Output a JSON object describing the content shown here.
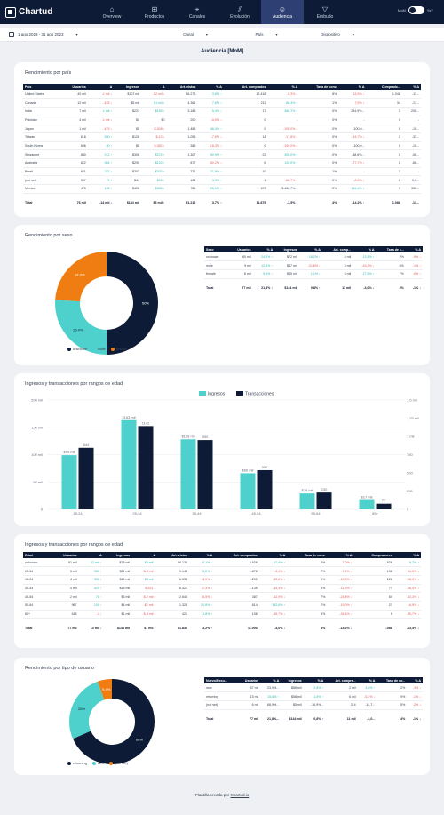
{
  "app": {
    "logo": "Chartud"
  },
  "nav": [
    {
      "label": "Overview",
      "icon": "⌂",
      "active": false
    },
    {
      "label": "Productos",
      "icon": "⊞",
      "active": false
    },
    {
      "label": "Canales",
      "icon": "⌖",
      "active": false
    },
    {
      "label": "Evolución",
      "icon": "⫽",
      "active": false
    },
    {
      "label": "Audiencia",
      "icon": "☺",
      "active": true
    },
    {
      "label": "Embudo",
      "icon": "▽",
      "active": false
    }
  ],
  "toggle": {
    "left": "MoM",
    "right": "YoY"
  },
  "filters": {
    "date": "1 ago 2023 - 31 ago 2023",
    "canal": "Canal",
    "pais": "País",
    "dispositivo": "Dispositivo"
  },
  "page_title": "Audiencia [MoM]",
  "colors": {
    "navy": "#0d1b36",
    "teal": "#4ed1cc",
    "orange": "#f07d12"
  },
  "country": {
    "title": "Rendimiento por país",
    "headers": [
      "País",
      "Usuarios",
      "Δ",
      "Ingresos",
      "Δ",
      "Art. vistos",
      "% Δ",
      "Art. comprados",
      "% Δ",
      "Tasa de conv.",
      "% Δ",
      "Comprado...",
      "% Δ"
    ],
    "rows": [
      [
        "United States",
        "40 mil",
        "-1 mil ↓",
        "$107 mil",
        "-$2 mil ↓",
        "36.273",
        "3,8% ↑",
        "12.418",
        "-5,3% ↓",
        "8%",
        "13,5% ↓",
        "1.048",
        "-11..."
      ],
      [
        "Canada",
        "12 mil",
        "-425 ↓",
        "$5 mil",
        "$1 mil ↑",
        "4.366",
        "7,6% ↑",
        "211",
        "88,4% ↑",
        "1%",
        "7,9% ↓",
        "34",
        "-17..."
      ],
      [
        "India",
        "7 mil",
        "1 mil ↑",
        "$221",
        "$169 ↑",
        "3.186",
        "5,4% ↑",
        "17",
        "466,7% ↑",
        "0%",
        "244,9%...",
        "3",
        "200..."
      ],
      [
        "Pakistan",
        "4 mil",
        "-1 mil ↓",
        "$0",
        "$0",
        "250",
        "-5,5% ↓",
        "0",
        "-",
        "0%",
        "-",
        "0",
        "-"
      ],
      [
        "Japan",
        "1 mil",
        "-479 ↓",
        "$0",
        "$-308 ↓",
        "1.483",
        "46,4% ↑",
        "0",
        "-100,0% ↓",
        "0%",
        "-100,0...",
        "0",
        "-10..."
      ],
      [
        "Taiwan",
        "816",
        "390 ↑",
        "$126",
        "$-13 ↓",
        "1.055",
        "-7,8% ↓",
        "14",
        "-17,6% ↓",
        "0%",
        "-44,7% ↓",
        "2",
        "-33..."
      ],
      [
        "South Korea",
        "696",
        "90 ↑",
        "$0",
        "$-382 ↓",
        "385",
        "-18,3% ↓",
        "0",
        "-100,0% ↓",
        "0%",
        "-100,0...",
        "0",
        "-10..."
      ],
      [
        "Singapore",
        "840",
        "312 ↑",
        "$306",
        "$274 ↑",
        "1.307",
        "50,9% ↑",
        "22",
        "300,0% ↑",
        "0%",
        "-88,6%...",
        "1",
        "-50..."
      ],
      [
        "Australia",
        "822",
        "304 ↑",
        "$290",
        "$120 ↑",
        "877",
        "-50,2% ↓",
        "6",
        "120,0% ↑",
        "0%",
        "-77,7% ↓",
        "1",
        "-66..."
      ],
      [
        "Brazil",
        "661",
        "322 ↑",
        "$303",
        "$303 ↑",
        "732",
        "21,8% ↑",
        "10",
        "-",
        "1%",
        "-",
        "2",
        "-"
      ],
      [
        "(not set)",
        "557",
        "71 ↑",
        "$44",
        "$26 ↑",
        "406",
        "3,3% ↑",
        "1",
        "-66,7% ↓",
        "0%",
        "-8,5% ↓",
        "1",
        "0,0..."
      ],
      [
        "Mexico",
        "470",
        "163 ↑",
        "$426",
        "$366 ↑",
        "786",
        "26,5% ↑",
        "107",
        "3.466,7%...",
        "2%",
        "164,6% ↑",
        "9",
        "350..."
      ]
    ],
    "total": [
      "Total",
      "76 mil",
      "-14 mil ↓",
      "$144 mil",
      "$3 mil ↑",
      "81.216",
      "3,7% ↑",
      "11.875",
      "-3,5% ↓",
      "4%",
      "-14,2% ↓",
      "1.088",
      "-13..."
    ]
  },
  "sex": {
    "title": "Rendimiento por sexo",
    "headers": [
      "Sexo",
      "Usuarios",
      "% Δ",
      "Ingresos",
      "% Δ",
      "Art. comp...",
      "% Δ",
      "Tasa de c...",
      "% Δ"
    ],
    "rows": [
      [
        "unknown",
        "60 mil",
        "24,6% ↑",
        "$72 mil",
        "18,2% ↑",
        "5 mil",
        "13,5% ↑",
        "2%",
        "-9% ↓"
      ],
      [
        "male",
        "9 mil",
        "12,8% ↑",
        "$37 mil",
        "-21,8% ↓",
        "3 mil",
        "-43,2% ↓",
        "6%",
        "-1% ↓"
      ],
      [
        "female",
        "6 mil",
        "9,4% ↑",
        "$35 mil",
        "1,1% ↑",
        "3 mil",
        "27,5% ↑",
        "7%",
        "-0% ↓"
      ]
    ],
    "total": [
      "Total",
      "77 mil",
      "21,8% ↑",
      "$144 mil",
      "0,8% ↑",
      "11 mil",
      "-4,0% ↓",
      "4%",
      "-1% ↓"
    ],
    "legend": [
      "unknown",
      "male",
      "female"
    ]
  },
  "sex_pie": {
    "type": "pie",
    "slices": [
      {
        "name": "unknown",
        "value": 50,
        "label": "50%",
        "color": "#0d1b36"
      },
      {
        "name": "male",
        "value": 26,
        "label": "26.0%",
        "color": "#4ed1cc"
      },
      {
        "name": "female",
        "value": 24,
        "label": "24.0%",
        "color": "#f07d12"
      }
    ]
  },
  "chart_data": {
    "type": "bar",
    "title": "Ingresos y transacciones por rangos de edad",
    "categories": [
      "18-24",
      "25-34",
      "35-44",
      "45-54",
      "55-64",
      "65+"
    ],
    "series": [
      {
        "name": "Ingresos",
        "axis": "left",
        "values": [
          99000,
          163000,
          128000,
          66000,
          29000,
          17000
        ],
        "labels": [
          "$99 mil",
          "$163 mil",
          "$128 mil",
          "$66 mil",
          "$29 mil",
          "$17 mil"
        ]
      },
      {
        "name": "Transacciones",
        "axis": "right",
        "values": [
          844,
          1142,
          950,
          537,
          230,
          77
        ],
        "labels": [
          "844",
          "1142",
          "950",
          "537",
          "230",
          "77"
        ]
      }
    ],
    "ylim_left": [
      0,
      200000
    ],
    "left_ticks": [
      "0",
      "50 mil",
      "100 mil",
      "150 mil",
      "200 mil"
    ],
    "ylim_right": [
      0,
      1500
    ],
    "right_ticks": [
      "0",
      "250",
      "500",
      "750",
      "1 mil",
      "1,25 mil",
      "1,5 mil"
    ],
    "legend_position": "top-center",
    "grid": true
  },
  "age": {
    "title": "Ingresos y transacciones por rangos de edad",
    "headers": [
      "Edad",
      "Usuarios",
      "Δ",
      "Ingresos",
      "Δ",
      "Art. vistos",
      "% Δ",
      "Art. comprados",
      "% Δ",
      "Tasa de conv.",
      "% Δ",
      "Compradores",
      "% Δ"
    ],
    "rows": [
      [
        "unknown",
        "61 mil",
        "12 mil ↑",
        "$75 mil",
        "$8 mil ↑",
        "56.136",
        "5,1% ↑",
        "4.928",
        "12,9% ↑",
        "3%",
        "-7,0% ↓",
        "826",
        "9,7% ↑"
      ],
      [
        "25-34",
        "5 mil",
        "389 ↑",
        "$21 mil",
        "$-4 mil ↓",
        "9.143",
        "5,6% ↑",
        "1.878",
        "-3,4% ↓",
        "7%",
        "-7,1% ↓",
        "198",
        "11,5% ↓"
      ],
      [
        "18-24",
        "4 mil",
        "301 ↑",
        "$19 mil",
        "$8 mil ↑",
        "6.035",
        "-3,9% ↓",
        "1.295",
        "-12,8% ↓",
        "6%",
        "-10,9% ↓",
        "126",
        "-16,5% ↓"
      ],
      [
        "35-44",
        "4 mil",
        "425 ↑",
        "$15 mil",
        "$-621 ↓",
        "6.422",
        "-2,3% ↓",
        "1.135",
        "-44,3% ↓",
        "6%",
        "-11,6% ↓",
        "77",
        "-16,4% ↓"
      ],
      [
        "45-54",
        "2 mil",
        "78 ↑",
        "$3 mil",
        "$-2 mil ↓",
        "2.646",
        "-6,5% ↓",
        "387",
        "-42,9% ↓",
        "7%",
        "-24,8% ↓",
        "54",
        "-33,3% ↓"
      ],
      [
        "55-64",
        "967",
        "100 ↑",
        "$4 mil",
        "-$1 mil ↓",
        "1.323",
        "20,8% ↑",
        "614",
        "342,6% ↑",
        "7%",
        "-19,0% ↓",
        "27",
        "-6,9% ↓"
      ],
      [
        "65+",
        "618",
        "-4 ↓",
        "$1 mil",
        "$-8 mil ↓",
        "421",
        "1,8% ↑",
        "108",
        "-35,7% ↓",
        "5%",
        "-34,4% ↓",
        "9",
        "-35,7% ↓"
      ]
    ],
    "total": [
      "Total",
      "77 mil",
      "14 mil ↑",
      "$144 mil",
      "$1 mil ↑",
      "81.830",
      "3,2% ↑",
      "11.000",
      "-4,0% ↓",
      "4%",
      "-14,2% ↓",
      "1.088",
      "-13,4% ↓"
    ]
  },
  "usertype": {
    "title": "Rendimiento por tipo de usuario",
    "headers": [
      "Nuevo/Recu...",
      "Usuarios",
      "% Δ",
      "Ingresos",
      "% Δ",
      "Art. compra...",
      "% Δ",
      "Tasa de co...",
      "% Δ"
    ],
    "rows": [
      [
        "new",
        "57 mil",
        "23,9%...",
        "$86 mil",
        "2,8% ↑",
        "2 mil",
        "4,6% ↑",
        "2%",
        "-3% ↓"
      ],
      [
        "returning",
        "15 mil",
        "15,6% ↑",
        "$58 mil",
        "1,8% ↑",
        "6 mil",
        "-5,2% ↓",
        "9%",
        "-1% ↓"
      ],
      [
        "(not set)",
        "6 mil",
        "68,9%...",
        "$5 mil",
        "-16,9%...",
        "314",
        "-14,7...",
        "5%",
        "-2% ↓"
      ]
    ],
    "total": [
      "Total",
      "77 mil",
      "21,8%...",
      "$144 mil",
      "0,8% ↑",
      "11 mil",
      "-4,0...",
      "4%",
      "-1% ↓"
    ],
    "legend": [
      "returning",
      "new",
      "(not set)"
    ]
  },
  "usertype_pie": {
    "type": "pie",
    "slices": [
      {
        "name": "returning",
        "value": 68,
        "label": "68%",
        "color": "#0d1b36"
      },
      {
        "name": "new",
        "value": 26,
        "label": "26%",
        "color": "#4ed1cc"
      },
      {
        "name": "(not set)",
        "value": 5.4,
        "label": "5,4%",
        "color": "#f07d12"
      }
    ]
  },
  "footer": {
    "text": "Plantilla creada por",
    "link": "Chartud.io"
  }
}
